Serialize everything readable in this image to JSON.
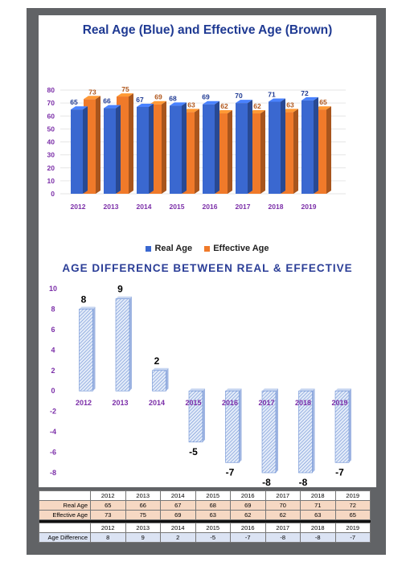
{
  "chart_data": [
    {
      "type": "bar",
      "title": "Real Age (Blue) and Effective Age (Brown)",
      "categories": [
        "2012",
        "2013",
        "2014",
        "2015",
        "2016",
        "2017",
        "2018",
        "2019"
      ],
      "series": [
        {
          "name": "Real Age",
          "values": [
            65,
            66,
            67,
            68,
            69,
            70,
            71,
            72
          ]
        },
        {
          "name": "Effective Age",
          "values": [
            73,
            75,
            69,
            63,
            62,
            62,
            63,
            65
          ]
        }
      ],
      "ylim": [
        0,
        80
      ],
      "yticks": [
        0,
        10,
        20,
        30,
        40,
        50,
        60,
        70,
        80
      ],
      "colors": {
        "Real Age": "#3a68d0",
        "Effective Age": "#f07a2a"
      },
      "legend": "bottom"
    },
    {
      "type": "bar",
      "title": "AGE DIFFERENCE BETWEEN REAL & EFFECTIVE",
      "categories": [
        "2012",
        "2013",
        "2014",
        "2015",
        "2016",
        "2017",
        "2018",
        "2019"
      ],
      "values": [
        8,
        9,
        2,
        -5,
        -7,
        -8,
        -8,
        -7
      ],
      "ylim": [
        -8,
        10
      ],
      "yticks": [
        10,
        8,
        6,
        4,
        2,
        0,
        -2,
        -4,
        -6,
        -8
      ]
    }
  ],
  "table": {
    "years": [
      "2012",
      "2013",
      "2014",
      "2015",
      "2016",
      "2017",
      "2018",
      "2019"
    ],
    "rows": [
      {
        "label": "Real Age",
        "values": [
          "65",
          "66",
          "67",
          "68",
          "69",
          "70",
          "71",
          "72"
        ]
      },
      {
        "label": "Effective Age",
        "values": [
          "73",
          "75",
          "69",
          "63",
          "62",
          "62",
          "63",
          "65"
        ]
      }
    ],
    "diff_row": {
      "label": "Age Difference",
      "values": [
        "8",
        "9",
        "2",
        "-5",
        "-7",
        "-8",
        "-8",
        "-7"
      ]
    }
  },
  "legend": {
    "real": "Real Age",
    "effective": "Effective Age"
  }
}
